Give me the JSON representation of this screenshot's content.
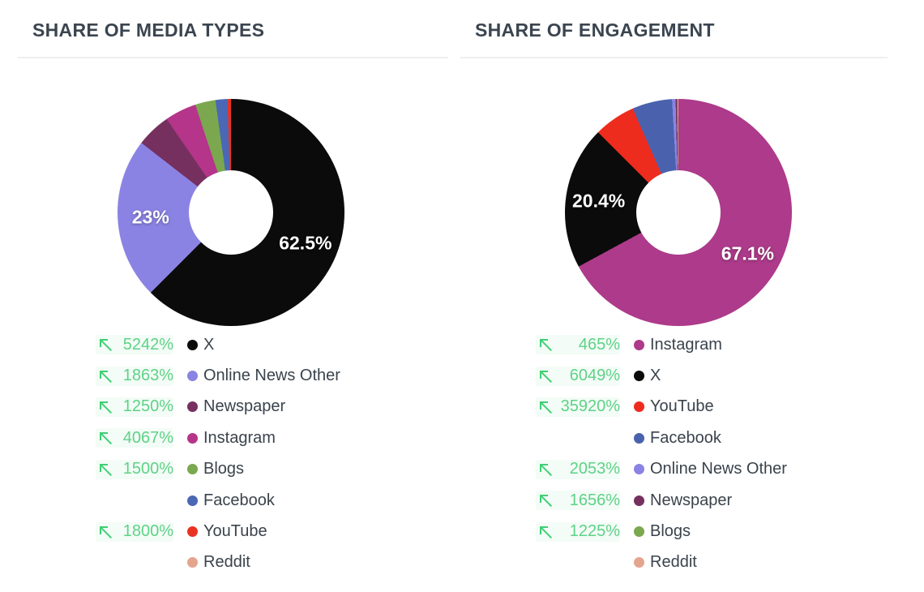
{
  "colors": {
    "background": "#ffffff",
    "title_text": "#3b4550",
    "divider": "#efefef",
    "legend_label_text": "#3a434c",
    "change_text": "#5ed287",
    "arrow_green": "#3fcf75",
    "slice_label_text": "#ffffff"
  },
  "chart_data": [
    {
      "type": "pie",
      "donut": true,
      "title": "SHARE OF MEDIA TYPES",
      "unit": "%",
      "legend_position": "bottom",
      "slices": [
        {
          "name": "X",
          "value": 62.5,
          "color": "#0b0b0b",
          "label": "62.5%"
        },
        {
          "name": "Online News Other",
          "value": 23.0,
          "color": "#8b83e3",
          "label": "23%"
        },
        {
          "name": "Newspaper",
          "value": 4.9,
          "color": "#76305f"
        },
        {
          "name": "Instagram",
          "value": 4.5,
          "color": "#b5358a"
        },
        {
          "name": "Blogs",
          "value": 2.9,
          "color": "#7ba74f"
        },
        {
          "name": "Facebook",
          "value": 1.7,
          "color": "#4a68b5"
        },
        {
          "name": "YouTube",
          "value": 0.5,
          "color": "#e93322"
        },
        {
          "name": "Reddit",
          "value": 0.0,
          "color": "#e4a58f"
        }
      ],
      "legend": [
        {
          "change": "5242%",
          "name": "X"
        },
        {
          "change": "1863%",
          "name": "Online News Other"
        },
        {
          "change": "1250%",
          "name": "Newspaper"
        },
        {
          "change": "4067%",
          "name": "Instagram"
        },
        {
          "change": "1500%",
          "name": "Blogs"
        },
        {
          "change": null,
          "name": "Facebook"
        },
        {
          "change": "1800%",
          "name": "YouTube"
        },
        {
          "change": null,
          "name": "Reddit"
        }
      ]
    },
    {
      "type": "pie",
      "donut": true,
      "title": "SHARE OF ENGAGEMENT",
      "unit": "%",
      "legend_position": "bottom",
      "slices": [
        {
          "name": "Instagram",
          "value": 67.1,
          "color": "#ad3a8a",
          "label": "67.1%"
        },
        {
          "name": "X",
          "value": 20.4,
          "color": "#0b0b0b",
          "label": "20.4%"
        },
        {
          "name": "YouTube",
          "value": 5.9,
          "color": "#ee2c1e"
        },
        {
          "name": "Facebook",
          "value": 5.7,
          "color": "#4a62ae"
        },
        {
          "name": "Online News Other",
          "value": 0.5,
          "color": "#8b83e3"
        },
        {
          "name": "Newspaper",
          "value": 0.2,
          "color": "#76305f"
        },
        {
          "name": "Blogs",
          "value": 0.1,
          "color": "#7ba74f"
        },
        {
          "name": "Reddit",
          "value": 0.1,
          "color": "#e4a58f"
        }
      ],
      "legend": [
        {
          "change": "465%",
          "name": "Instagram"
        },
        {
          "change": "6049%",
          "name": "X"
        },
        {
          "change": "35920%",
          "name": "YouTube"
        },
        {
          "change": null,
          "name": "Facebook"
        },
        {
          "change": "2053%",
          "name": "Online News Other"
        },
        {
          "change": "1656%",
          "name": "Newspaper"
        },
        {
          "change": "1225%",
          "name": "Blogs"
        },
        {
          "change": null,
          "name": "Reddit"
        }
      ]
    }
  ]
}
